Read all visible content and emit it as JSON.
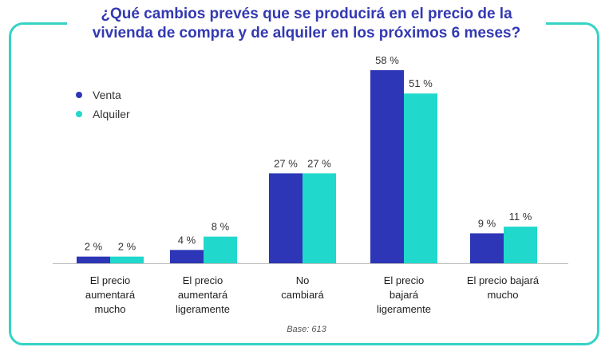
{
  "title_lines": [
    "¿Qué cambios prevés que se producirá en el precio de la",
    "vivienda de compra y de alquiler en los próximos 6 meses?"
  ],
  "legend": [
    {
      "label": "Venta",
      "color": "#2d36b6"
    },
    {
      "label": "Alquiler",
      "color": "#20d8cb"
    }
  ],
  "base_note": "Base: 613",
  "chart_data": {
    "type": "bar",
    "title": "¿Qué cambios prevés que se producirá en el precio de la vivienda de compra y de alquiler en los próximos 6 meses?",
    "categories": [
      "El precio\naumentará\nmucho",
      "El precio\naumentará\nligeramente",
      "No\ncambiará",
      "El precio\nbajará\nligeramente",
      "El precio bajará\nmucho"
    ],
    "series": [
      {
        "name": "Venta",
        "values": [
          2,
          4,
          27,
          58,
          9
        ],
        "labels": [
          "2 %",
          "4 %",
          "27 %",
          "58 %",
          "9 %"
        ],
        "color": "#2d36b6"
      },
      {
        "name": "Alquiler",
        "values": [
          2,
          8,
          27,
          51,
          11
        ],
        "labels": [
          "2 %",
          "8 %",
          "27 %",
          "51 %",
          "11 %"
        ],
        "color": "#20d8cb"
      }
    ],
    "ylim": [
      0,
      60
    ],
    "xlabel": "",
    "ylabel": "",
    "grid": false,
    "legend_position": "top-left"
  }
}
